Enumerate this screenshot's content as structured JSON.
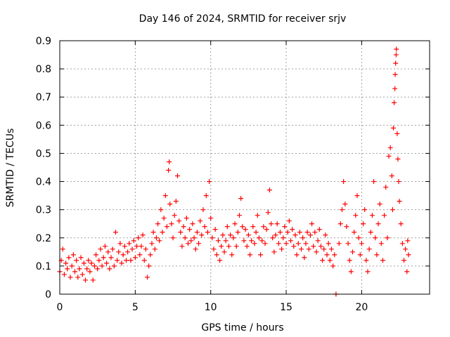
{
  "chart_data": {
    "type": "scatter",
    "title": "Day 146 of 2024, SRMTID for receiver srjv",
    "xlabel": "GPS time / hours",
    "ylabel": "SRMTID / TECUs",
    "xlim": [
      0,
      24.5
    ],
    "ylim": [
      0,
      0.9
    ],
    "xticks": [
      0,
      5,
      10,
      15,
      20
    ],
    "yticks": [
      0,
      0.1,
      0.2,
      0.3,
      0.4,
      0.5,
      0.6,
      0.7,
      0.8,
      0.9
    ],
    "grid": true,
    "marker": "+",
    "series": [
      {
        "name": "SRMTID",
        "color": "#ff0000",
        "points": [
          [
            0.0,
            0.08
          ],
          [
            0.1,
            0.12
          ],
          [
            0.2,
            0.16
          ],
          [
            0.3,
            0.07
          ],
          [
            0.4,
            0.11
          ],
          [
            0.5,
            0.09
          ],
          [
            0.6,
            0.13
          ],
          [
            0.7,
            0.06
          ],
          [
            0.8,
            0.1
          ],
          [
            0.9,
            0.14
          ],
          [
            1.0,
            0.08
          ],
          [
            1.1,
            0.12
          ],
          [
            1.2,
            0.06
          ],
          [
            1.3,
            0.09
          ],
          [
            1.4,
            0.13
          ],
          [
            1.5,
            0.07
          ],
          [
            1.6,
            0.11
          ],
          [
            1.7,
            0.05
          ],
          [
            1.8,
            0.09
          ],
          [
            1.9,
            0.12
          ],
          [
            2.0,
            0.08
          ],
          [
            2.1,
            0.11
          ],
          [
            2.2,
            0.05
          ],
          [
            2.3,
            0.1
          ],
          [
            2.4,
            0.14
          ],
          [
            2.5,
            0.09
          ],
          [
            2.6,
            0.12
          ],
          [
            2.7,
            0.16
          ],
          [
            2.8,
            0.1
          ],
          [
            2.9,
            0.13
          ],
          [
            3.0,
            0.17
          ],
          [
            3.1,
            0.11
          ],
          [
            3.2,
            0.15
          ],
          [
            3.3,
            0.09
          ],
          [
            3.4,
            0.13
          ],
          [
            3.5,
            0.16
          ],
          [
            3.6,
            0.1
          ],
          [
            3.7,
            0.22
          ],
          [
            3.8,
            0.12
          ],
          [
            3.9,
            0.15
          ],
          [
            4.0,
            0.18
          ],
          [
            4.1,
            0.11
          ],
          [
            4.2,
            0.14
          ],
          [
            4.3,
            0.17
          ],
          [
            4.4,
            0.12
          ],
          [
            4.5,
            0.15
          ],
          [
            4.6,
            0.18
          ],
          [
            4.7,
            0.12
          ],
          [
            4.8,
            0.16
          ],
          [
            4.9,
            0.19
          ],
          [
            5.0,
            0.13
          ],
          [
            5.1,
            0.17
          ],
          [
            5.2,
            0.2
          ],
          [
            5.3,
            0.14
          ],
          [
            5.4,
            0.17
          ],
          [
            5.5,
            0.21
          ],
          [
            5.6,
            0.12
          ],
          [
            5.7,
            0.16
          ],
          [
            5.8,
            0.06
          ],
          [
            5.9,
            0.1
          ],
          [
            6.0,
            0.14
          ],
          [
            6.1,
            0.18
          ],
          [
            6.2,
            0.22
          ],
          [
            6.3,
            0.16
          ],
          [
            6.4,
            0.2
          ],
          [
            6.5,
            0.25
          ],
          [
            6.6,
            0.19
          ],
          [
            6.7,
            0.3
          ],
          [
            6.8,
            0.22
          ],
          [
            6.9,
            0.27
          ],
          [
            7.0,
            0.35
          ],
          [
            7.1,
            0.24
          ],
          [
            7.2,
            0.44
          ],
          [
            7.25,
            0.47
          ],
          [
            7.3,
            0.32
          ],
          [
            7.4,
            0.25
          ],
          [
            7.5,
            0.2
          ],
          [
            7.6,
            0.28
          ],
          [
            7.7,
            0.33
          ],
          [
            7.8,
            0.42
          ],
          [
            7.9,
            0.26
          ],
          [
            8.0,
            0.22
          ],
          [
            8.1,
            0.17
          ],
          [
            8.2,
            0.24
          ],
          [
            8.3,
            0.2
          ],
          [
            8.4,
            0.27
          ],
          [
            8.5,
            0.18
          ],
          [
            8.6,
            0.23
          ],
          [
            8.7,
            0.19
          ],
          [
            8.8,
            0.25
          ],
          [
            8.9,
            0.2
          ],
          [
            9.0,
            0.16
          ],
          [
            9.1,
            0.22
          ],
          [
            9.2,
            0.18
          ],
          [
            9.3,
            0.26
          ],
          [
            9.4,
            0.21
          ],
          [
            9.5,
            0.3
          ],
          [
            9.6,
            0.24
          ],
          [
            9.7,
            0.35
          ],
          [
            9.8,
            0.22
          ],
          [
            9.9,
            0.4
          ],
          [
            10.0,
            0.27
          ],
          [
            10.1,
            0.2
          ],
          [
            10.2,
            0.16
          ],
          [
            10.3,
            0.23
          ],
          [
            10.4,
            0.14
          ],
          [
            10.5,
            0.19
          ],
          [
            10.6,
            0.12
          ],
          [
            10.7,
            0.17
          ],
          [
            10.8,
            0.21
          ],
          [
            10.9,
            0.15
          ],
          [
            11.0,
            0.19
          ],
          [
            11.1,
            0.24
          ],
          [
            11.2,
            0.17
          ],
          [
            11.3,
            0.21
          ],
          [
            11.4,
            0.14
          ],
          [
            11.5,
            0.2
          ],
          [
            11.6,
            0.25
          ],
          [
            11.7,
            0.17
          ],
          [
            11.8,
            0.22
          ],
          [
            11.9,
            0.28
          ],
          [
            12.0,
            0.34
          ],
          [
            12.1,
            0.24
          ],
          [
            12.2,
            0.19
          ],
          [
            12.3,
            0.23
          ],
          [
            12.4,
            0.17
          ],
          [
            12.5,
            0.21
          ],
          [
            12.6,
            0.14
          ],
          [
            12.7,
            0.19
          ],
          [
            12.8,
            0.24
          ],
          [
            12.9,
            0.18
          ],
          [
            13.0,
            0.22
          ],
          [
            13.1,
            0.28
          ],
          [
            13.2,
            0.2
          ],
          [
            13.3,
            0.14
          ],
          [
            13.4,
            0.19
          ],
          [
            13.5,
            0.24
          ],
          [
            13.6,
            0.18
          ],
          [
            13.7,
            0.23
          ],
          [
            13.8,
            0.29
          ],
          [
            13.9,
            0.37
          ],
          [
            14.0,
            0.25
          ],
          [
            14.1,
            0.2
          ],
          [
            14.2,
            0.15
          ],
          [
            14.3,
            0.21
          ],
          [
            14.4,
            0.25
          ],
          [
            14.5,
            0.18
          ],
          [
            14.6,
            0.22
          ],
          [
            14.7,
            0.16
          ],
          [
            14.8,
            0.2
          ],
          [
            14.9,
            0.24
          ],
          [
            15.0,
            0.18
          ],
          [
            15.1,
            0.22
          ],
          [
            15.2,
            0.26
          ],
          [
            15.3,
            0.19
          ],
          [
            15.4,
            0.23
          ],
          [
            15.5,
            0.17
          ],
          [
            15.6,
            0.21
          ],
          [
            15.7,
            0.14
          ],
          [
            15.8,
            0.18
          ],
          [
            15.9,
            0.22
          ],
          [
            16.0,
            0.16
          ],
          [
            16.1,
            0.2
          ],
          [
            16.2,
            0.13
          ],
          [
            16.3,
            0.18
          ],
          [
            16.4,
            0.22
          ],
          [
            16.5,
            0.16
          ],
          [
            16.6,
            0.21
          ],
          [
            16.7,
            0.25
          ],
          [
            16.8,
            0.17
          ],
          [
            16.9,
            0.22
          ],
          [
            17.0,
            0.15
          ],
          [
            17.1,
            0.19
          ],
          [
            17.2,
            0.23
          ],
          [
            17.3,
            0.17
          ],
          [
            17.4,
            0.12
          ],
          [
            17.5,
            0.16
          ],
          [
            17.6,
            0.21
          ],
          [
            17.7,
            0.14
          ],
          [
            17.8,
            0.18
          ],
          [
            17.9,
            0.12
          ],
          [
            18.0,
            0.16
          ],
          [
            18.1,
            0.1
          ],
          [
            18.2,
            0.14
          ],
          [
            18.3,
            0.0
          ],
          [
            18.5,
            0.18
          ],
          [
            18.6,
            0.25
          ],
          [
            18.7,
            0.3
          ],
          [
            18.8,
            0.4
          ],
          [
            18.9,
            0.32
          ],
          [
            19.0,
            0.24
          ],
          [
            19.1,
            0.18
          ],
          [
            19.2,
            0.12
          ],
          [
            19.3,
            0.08
          ],
          [
            19.4,
            0.15
          ],
          [
            19.5,
            0.22
          ],
          [
            19.6,
            0.28
          ],
          [
            19.7,
            0.35
          ],
          [
            19.8,
            0.2
          ],
          [
            19.9,
            0.14
          ],
          [
            20.0,
            0.18
          ],
          [
            20.1,
            0.25
          ],
          [
            20.2,
            0.3
          ],
          [
            20.3,
            0.12
          ],
          [
            20.4,
            0.08
          ],
          [
            20.5,
            0.16
          ],
          [
            20.6,
            0.22
          ],
          [
            20.7,
            0.28
          ],
          [
            20.8,
            0.4
          ],
          [
            20.9,
            0.2
          ],
          [
            21.0,
            0.14
          ],
          [
            21.1,
            0.25
          ],
          [
            21.2,
            0.32
          ],
          [
            21.3,
            0.18
          ],
          [
            21.4,
            0.12
          ],
          [
            21.5,
            0.28
          ],
          [
            21.6,
            0.38
          ],
          [
            21.7,
            0.2
          ],
          [
            21.8,
            0.49
          ],
          [
            21.9,
            0.52
          ],
          [
            22.0,
            0.42
          ],
          [
            22.05,
            0.3
          ],
          [
            22.1,
            0.59
          ],
          [
            22.15,
            0.68
          ],
          [
            22.2,
            0.73
          ],
          [
            22.22,
            0.78
          ],
          [
            22.25,
            0.82
          ],
          [
            22.28,
            0.85
          ],
          [
            22.3,
            0.87
          ],
          [
            22.35,
            0.57
          ],
          [
            22.4,
            0.48
          ],
          [
            22.45,
            0.4
          ],
          [
            22.5,
            0.33
          ],
          [
            22.6,
            0.25
          ],
          [
            22.7,
            0.18
          ],
          [
            22.8,
            0.12
          ],
          [
            22.9,
            0.16
          ],
          [
            23.0,
            0.08
          ],
          [
            23.05,
            0.19
          ],
          [
            23.1,
            0.14
          ]
        ]
      }
    ]
  }
}
